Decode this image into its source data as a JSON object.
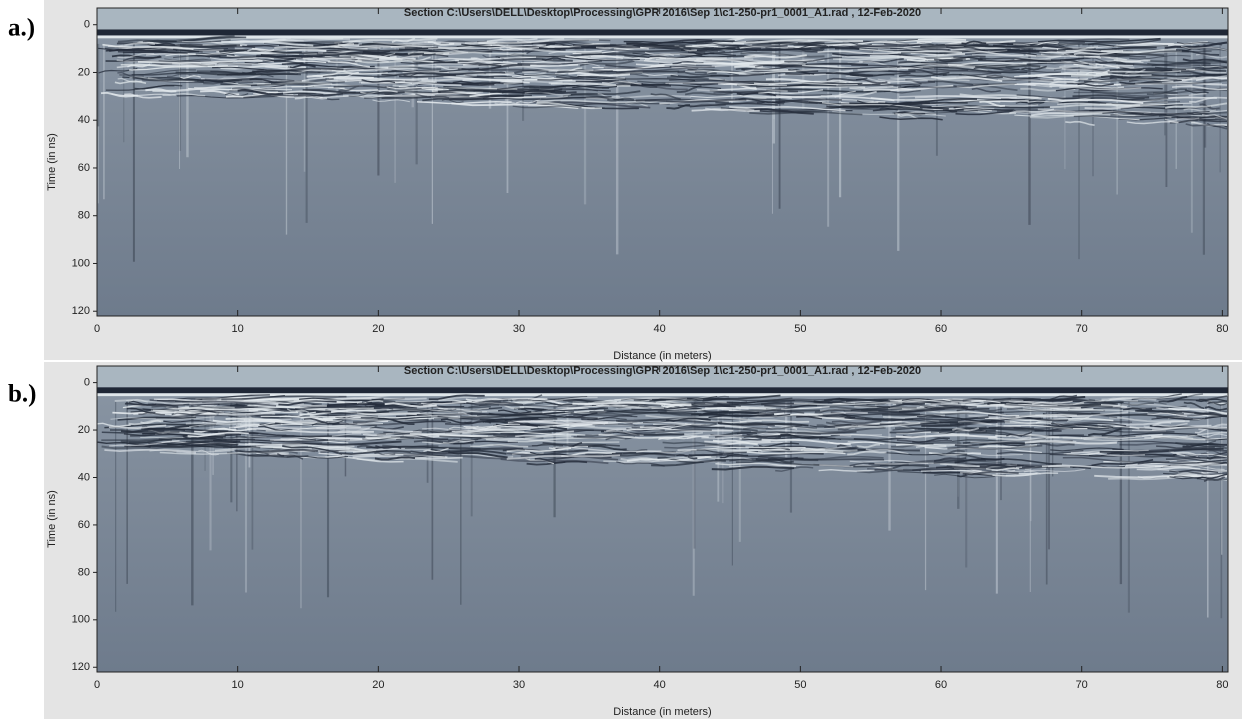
{
  "chart_data": [
    {
      "type": "radargram",
      "label": "a.)",
      "title": "Section C:\\Users\\DELL\\Desktop\\Processing\\GPR 2016\\Sep 1\\c1-250-pr1_0001_A1.rad ,  12-Feb-2020",
      "xlabel": "Distance (in meters)",
      "ylabel": "Time (in ns)",
      "xlim": [
        0,
        80.4
      ],
      "ylim": [
        -7,
        122
      ],
      "y_inverted": true,
      "xticks": [
        0,
        10,
        20,
        30,
        40,
        50,
        60,
        70,
        80
      ],
      "yticks": [
        0,
        20,
        40,
        60,
        80,
        100,
        120
      ]
    },
    {
      "type": "radargram",
      "label": "b.)",
      "title": "Section C:\\Users\\DELL\\Desktop\\Processing\\GPR 2016\\Sep 1\\c1-250-pr1_0001_A1.rad ,  12-Feb-2020",
      "xlabel": "Distance (in meters)",
      "ylabel": "Time (in ns)",
      "xlim": [
        0,
        80.4
      ],
      "ylim": [
        -7,
        122
      ],
      "y_inverted": true,
      "xticks": [
        0,
        10,
        20,
        30,
        40,
        50,
        60,
        70,
        80
      ],
      "yticks": [
        0,
        20,
        40,
        60,
        80,
        100,
        120
      ]
    }
  ]
}
